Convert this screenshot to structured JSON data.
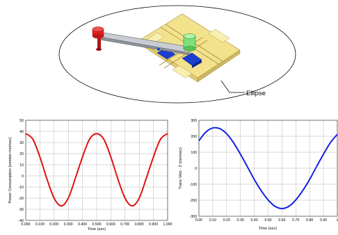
{
  "figure": {
    "ellipse_label": "Ellipse",
    "colors": {
      "plate": "#f3e28c",
      "plate_edge": "#a08a3c",
      "rod": "#c9cdd3",
      "red_knob": "#e02020",
      "green_block": "#7ee07a",
      "blue_block": "#1a3ed0"
    },
    "icons": [
      "red-knob-icon",
      "green-block-icon"
    ]
  },
  "chart_data": [
    {
      "type": "line",
      "xlabel": "Time (sec)",
      "ylabel": "Power Consumption (newton-mm/sec)",
      "xlim": [
        0,
        1.0
      ],
      "ylim": [
        -40,
        50
      ],
      "xticks": [
        "0.000",
        "0.100",
        "0.200",
        "0.300",
        "0.400",
        "0.500",
        "0.600",
        "0.700",
        "0.800",
        "0.900",
        "1.000"
      ],
      "yticks": [
        "50",
        "40",
        "30",
        "20",
        "10",
        "0",
        "-10",
        "-20",
        "-30",
        "-40"
      ],
      "grid": true,
      "series": [
        {
          "color": "#e01010",
          "x": [
            0.0,
            0.05,
            0.1,
            0.15,
            0.2,
            0.25,
            0.3,
            0.35,
            0.4,
            0.45,
            0.5,
            0.55,
            0.6,
            0.65,
            0.7,
            0.75,
            0.8,
            0.85,
            0.9,
            0.95,
            1.0
          ],
          "y": [
            38,
            33,
            17,
            -3,
            -20,
            -27,
            -20,
            -2,
            17,
            33,
            38,
            33,
            17,
            -3,
            -20,
            -27,
            -20,
            -2,
            17,
            33,
            38
          ]
        }
      ]
    },
    {
      "type": "line",
      "xlabel": "Time (sec)",
      "ylabel": "Trans Velo - Z (mm/sec)",
      "xlim": [
        0,
        1.0
      ],
      "ylim": [
        -300,
        300
      ],
      "xticks": [
        "0.00",
        "0.10",
        "0.20",
        "0.30",
        "0.40",
        "0.50",
        "0.60",
        "0.70",
        "0.80",
        "0.90",
        "1"
      ],
      "yticks": [
        "300",
        "200",
        "100",
        "0",
        "-100",
        "-200",
        "-300"
      ],
      "grid": true,
      "series": [
        {
          "color": "#1020e0",
          "x": [
            0.0,
            0.05,
            0.1,
            0.15,
            0.2,
            0.25,
            0.3,
            0.35,
            0.4,
            0.45,
            0.5,
            0.55,
            0.6,
            0.65,
            0.7,
            0.75,
            0.8,
            0.85,
            0.9,
            0.95,
            1.0
          ],
          "y": [
            172,
            226,
            252,
            248,
            216,
            160,
            88,
            10,
            -70,
            -140,
            -198,
            -238,
            -252,
            -238,
            -198,
            -140,
            -70,
            10,
            88,
            160,
            212
          ]
        }
      ]
    }
  ]
}
